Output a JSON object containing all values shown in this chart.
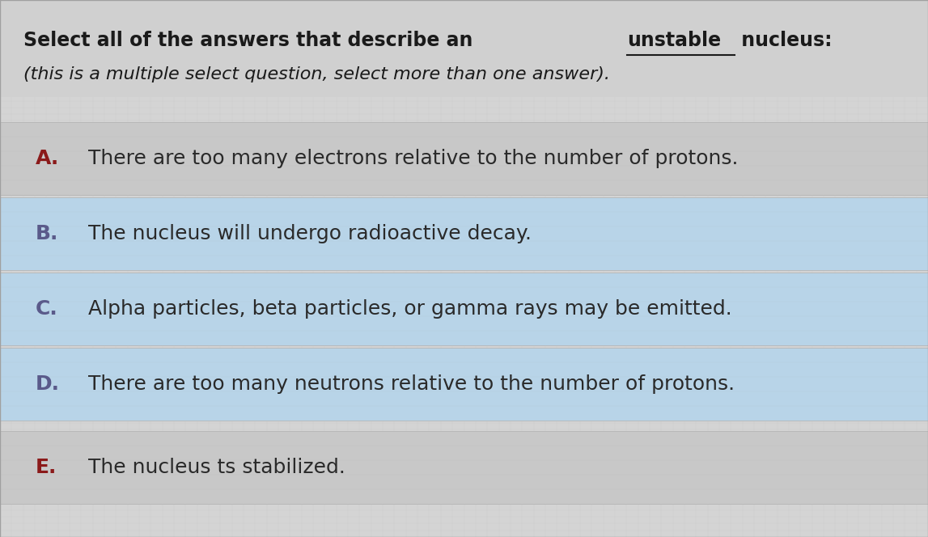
{
  "title_line1_prefix": "Select all of the answers that describe an ",
  "title_underline": "unstable",
  "title_line1_suffix": " nucleus:",
  "title_line2": "(this is a multiple select question, select more than one answer).",
  "options": [
    {
      "label": "A.",
      "text": "There are too many electrons relative to the number of protons.",
      "highlighted": false
    },
    {
      "label": "B.",
      "text": "The nucleus will undergo radioactive decay.",
      "highlighted": true
    },
    {
      "label": "C.",
      "text": "Alpha particles, beta particles, or gamma rays may be emitted.",
      "highlighted": true
    },
    {
      "label": "D.",
      "text": "There are too many neutrons relative to the number of protons.",
      "highlighted": true
    },
    {
      "label": "E.",
      "text": "The nucleus ts stabilized.",
      "highlighted": false
    }
  ],
  "bg_color": "#d4d4d4",
  "highlight_color": "#b8d4e8",
  "row_normal_color": "#c8c8c8",
  "label_color_highlighted": "#5a5a8a",
  "label_color_normal": "#8b1a1a",
  "text_color": "#2a2a2a",
  "title_color": "#1a1a1a",
  "italic_color": "#1a1a1a",
  "title_bg_color": "#d0d0d0",
  "figsize": [
    11.47,
    6.64
  ],
  "dpi": 100,
  "title_fontsize": 17,
  "subtitle_fontsize": 16,
  "option_fontsize": 18
}
